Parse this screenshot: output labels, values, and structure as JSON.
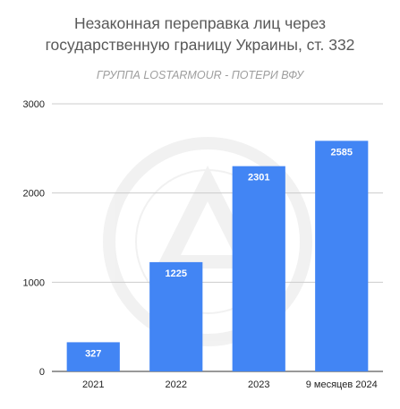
{
  "chart_data": {
    "type": "bar",
    "title_line1": "Незаконная переправка лиц через",
    "title_line2": "государственную границу Украины, ст. 332",
    "subtitle": "ГРУППА LOSTARMOUR - ПОТЕРИ ВФУ",
    "watermark": "LOSTARMOUR · CARTHAGO DELENDA EST",
    "categories": [
      "2021",
      "2022",
      "2023",
      "9 месяцев 2024"
    ],
    "values": [
      327,
      1225,
      2301,
      2585
    ],
    "y_ticks": [
      "0",
      "1000",
      "2000",
      "3000"
    ],
    "ylim": [
      0,
      3000
    ],
    "bar_color": "#4285f4",
    "grid": true,
    "legend": "none"
  }
}
